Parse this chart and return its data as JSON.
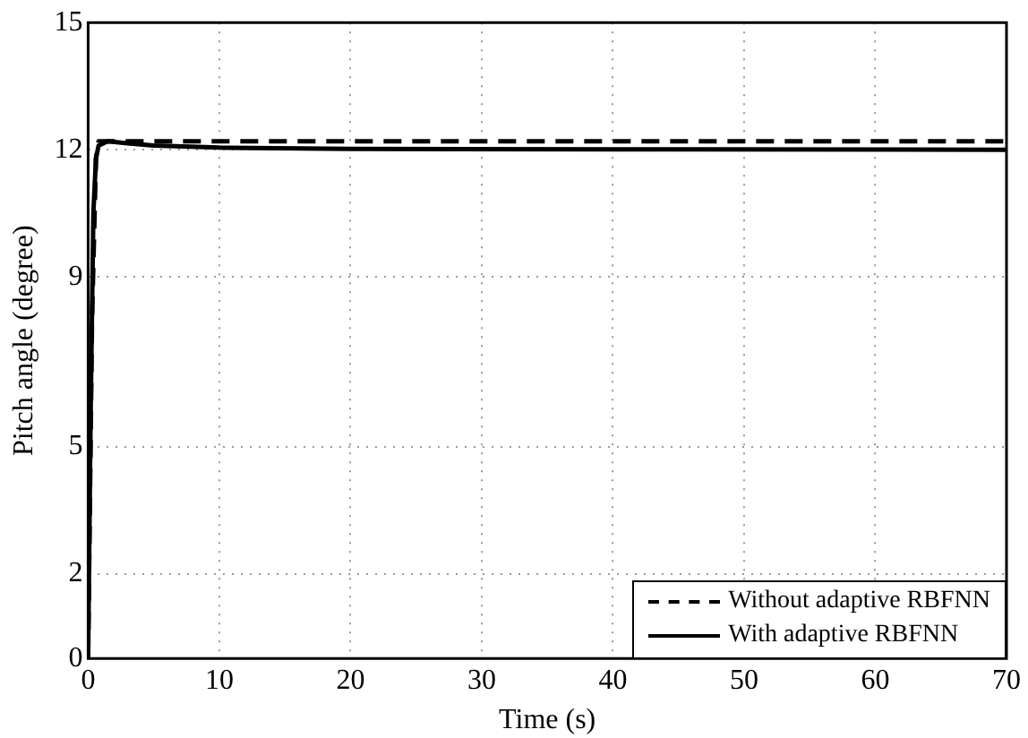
{
  "chart_data": {
    "type": "line",
    "xlabel": "Time (s)",
    "ylabel": "Pitch angle (degree)",
    "xlim": [
      0,
      70
    ],
    "xticks": [
      0,
      10,
      20,
      30,
      40,
      50,
      60,
      70
    ],
    "ylim": [
      0,
      15
    ],
    "yticks": [
      0,
      2,
      5,
      9,
      12,
      15
    ],
    "grid": true,
    "legend": "bottom right",
    "marker": "none",
    "series": [
      {
        "name": "Without adaptive RBFNN",
        "color": "#000000",
        "line_style": "dashed",
        "x": [
          0,
          0.3,
          0.6,
          0.8,
          1,
          70
        ],
        "values": [
          0,
          8,
          11.8,
          12.2,
          12.2,
          12.2
        ]
      },
      {
        "name": "With adaptive RBFNN",
        "color": "#000000",
        "line_style": "solid",
        "x": [
          0,
          0.2,
          0.4,
          0.6,
          0.8,
          1.5,
          3,
          5,
          10,
          20,
          40,
          70
        ],
        "values": [
          0,
          6,
          10.5,
          11.8,
          12.1,
          12.2,
          12.15,
          12.1,
          12.05,
          12.02,
          12.01,
          12
        ]
      }
    ]
  }
}
